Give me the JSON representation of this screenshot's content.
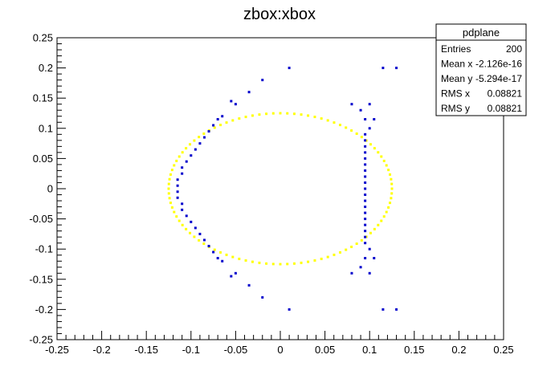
{
  "chart_data": {
    "type": "scatter",
    "title": "zbox:xbox",
    "xlabel": "",
    "ylabel": "",
    "xlim": [
      -0.25,
      0.25
    ],
    "ylim": [
      -0.25,
      0.25
    ],
    "x_ticks": [
      "-0.25",
      "-0.2",
      "-0.15",
      "-0.1",
      "-0.05",
      "0",
      "0.05",
      "0.1",
      "0.15",
      "0.2",
      "0.25"
    ],
    "y_ticks": [
      "-0.25",
      "-0.2",
      "-0.15",
      "-0.1",
      "-0.05",
      "0",
      "0.05",
      "0.1",
      "0.15",
      "0.2",
      "0.25"
    ],
    "grid": false,
    "stats_box": {
      "name": "pdplane",
      "rows": [
        {
          "label": "Entries",
          "value": "200"
        },
        {
          "label": "Mean x",
          "value": "-2.126e-16"
        },
        {
          "label": "Mean y",
          "value": "-5.294e-17"
        },
        {
          "label": "RMS x",
          "value": "0.08821"
        },
        {
          "label": "RMS y",
          "value": "0.08821"
        }
      ]
    },
    "series": [
      {
        "color": "#ffff00",
        "ellipse": {
          "center": [
            0.0,
            0.0
          ],
          "radius_x": 0.125,
          "radius_y": 0.125,
          "points": 100
        }
      },
      {
        "color": "#0000cc",
        "points": [
          [
            0.01,
            0.2
          ],
          [
            0.115,
            0.2
          ],
          [
            0.13,
            0.2
          ],
          [
            -0.02,
            0.18
          ],
          [
            -0.035,
            0.16
          ],
          [
            -0.05,
            0.14
          ],
          [
            -0.055,
            0.145
          ],
          [
            -0.065,
            0.12
          ],
          [
            -0.07,
            0.115
          ],
          [
            -0.075,
            0.105
          ],
          [
            -0.08,
            0.095
          ],
          [
            -0.085,
            0.085
          ],
          [
            -0.09,
            0.075
          ],
          [
            -0.095,
            0.065
          ],
          [
            -0.1,
            0.055
          ],
          [
            -0.105,
            0.045
          ],
          [
            -0.11,
            0.035
          ],
          [
            -0.11,
            0.025
          ],
          [
            -0.115,
            0.015
          ],
          [
            -0.115,
            0.005
          ],
          [
            -0.115,
            -0.005
          ],
          [
            -0.115,
            -0.015
          ],
          [
            -0.11,
            -0.025
          ],
          [
            -0.11,
            -0.035
          ],
          [
            -0.105,
            -0.045
          ],
          [
            -0.1,
            -0.055
          ],
          [
            -0.095,
            -0.065
          ],
          [
            -0.09,
            -0.075
          ],
          [
            -0.085,
            -0.085
          ],
          [
            -0.08,
            -0.095
          ],
          [
            -0.075,
            -0.105
          ],
          [
            -0.07,
            -0.115
          ],
          [
            -0.065,
            -0.12
          ],
          [
            -0.055,
            -0.145
          ],
          [
            -0.05,
            -0.14
          ],
          [
            -0.035,
            -0.16
          ],
          [
            -0.02,
            -0.18
          ],
          [
            0.01,
            -0.2
          ],
          [
            0.115,
            -0.2
          ],
          [
            0.13,
            -0.2
          ],
          [
            0.08,
            0.14
          ],
          [
            0.09,
            0.13
          ],
          [
            0.1,
            0.14
          ],
          [
            0.105,
            0.115
          ],
          [
            0.095,
            0.115
          ],
          [
            0.1,
            0.1
          ],
          [
            0.095,
            0.09
          ],
          [
            0.095,
            0.08
          ],
          [
            0.095,
            0.07
          ],
          [
            0.095,
            0.06
          ],
          [
            0.095,
            0.05
          ],
          [
            0.095,
            0.04
          ],
          [
            0.095,
            0.03
          ],
          [
            0.095,
            0.02
          ],
          [
            0.095,
            0.01
          ],
          [
            0.095,
            0.0
          ],
          [
            0.095,
            -0.01
          ],
          [
            0.095,
            -0.02
          ],
          [
            0.095,
            -0.03
          ],
          [
            0.095,
            -0.04
          ],
          [
            0.095,
            -0.05
          ],
          [
            0.095,
            -0.06
          ],
          [
            0.095,
            -0.07
          ],
          [
            0.095,
            -0.08
          ],
          [
            0.095,
            -0.09
          ],
          [
            0.1,
            -0.1
          ],
          [
            0.095,
            -0.115
          ],
          [
            0.105,
            -0.115
          ],
          [
            0.08,
            -0.14
          ],
          [
            0.09,
            -0.13
          ],
          [
            0.1,
            -0.14
          ]
        ]
      }
    ]
  }
}
